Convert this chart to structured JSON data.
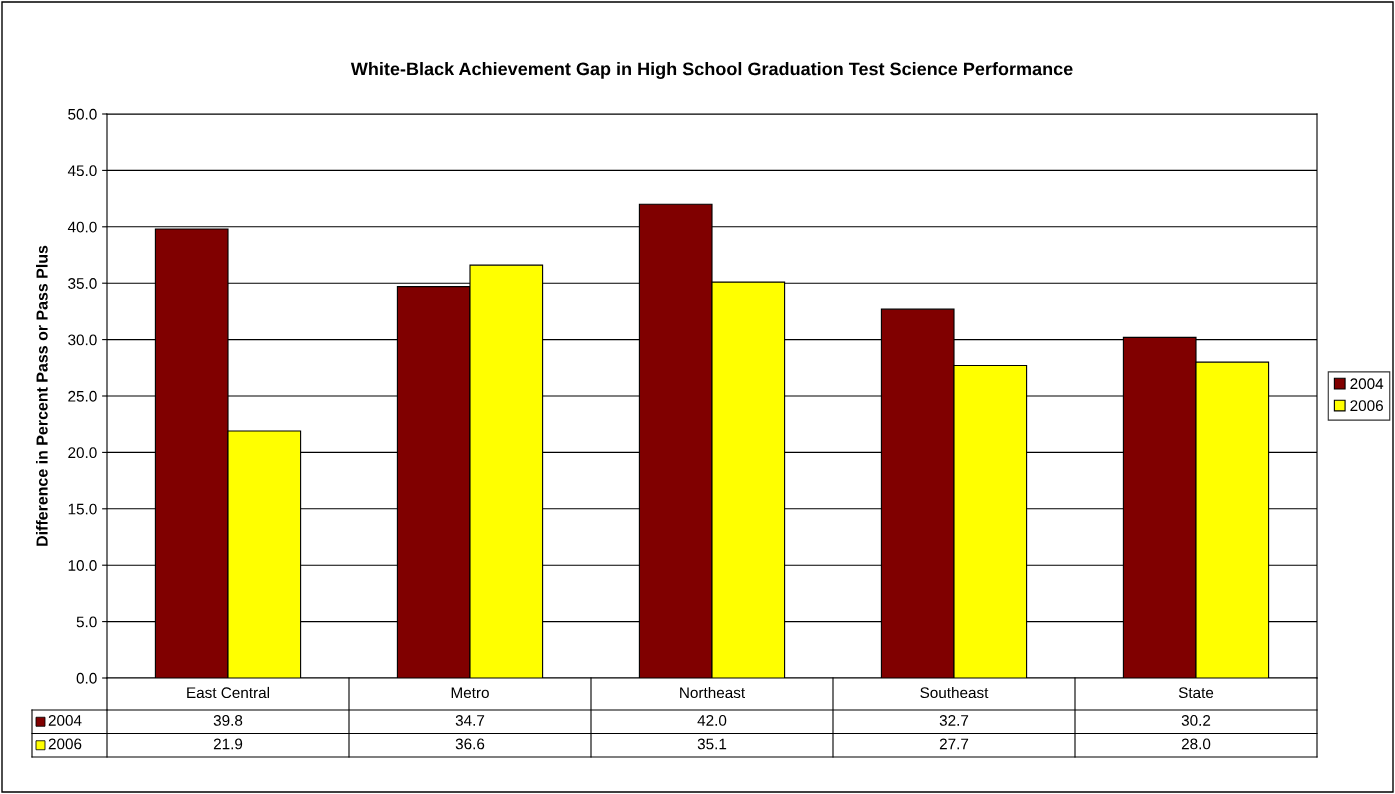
{
  "chart_data": {
    "type": "bar",
    "title": "White-Black Achievement Gap in High School Graduation Test Science Performance",
    "ylabel": "Difference in Percent Pass or Pass Plus",
    "categories": [
      "East Central",
      "Metro",
      "Northeast",
      "Southeast",
      "State"
    ],
    "series": [
      {
        "name": "2004",
        "color": "#800000",
        "values": [
          39.8,
          34.7,
          42.0,
          32.7,
          30.2
        ],
        "value_labels": [
          "39.8",
          "34.7",
          "42.0",
          "32.7",
          "30.2"
        ]
      },
      {
        "name": "2006",
        "color": "#ffff00",
        "values": [
          21.9,
          36.6,
          35.1,
          27.7,
          28.0
        ],
        "value_labels": [
          "21.9",
          "36.6",
          "35.1",
          "27.7",
          "28.0"
        ]
      }
    ],
    "ylim": [
      0,
      50
    ],
    "yticks": [
      {
        "value": 0,
        "label": "0.0"
      },
      {
        "value": 5,
        "label": "5.0"
      },
      {
        "value": 10,
        "label": "10.0"
      },
      {
        "value": 15,
        "label": "15.0"
      },
      {
        "value": 20,
        "label": "20.0"
      },
      {
        "value": 25,
        "label": "25.0"
      },
      {
        "value": 30,
        "label": "30.0"
      },
      {
        "value": 35,
        "label": "35.0"
      },
      {
        "value": 40,
        "label": "40.0"
      },
      {
        "value": 45,
        "label": "45.0"
      },
      {
        "value": 50,
        "label": "50.0"
      }
    ],
    "grid": "y",
    "legend": "right"
  }
}
